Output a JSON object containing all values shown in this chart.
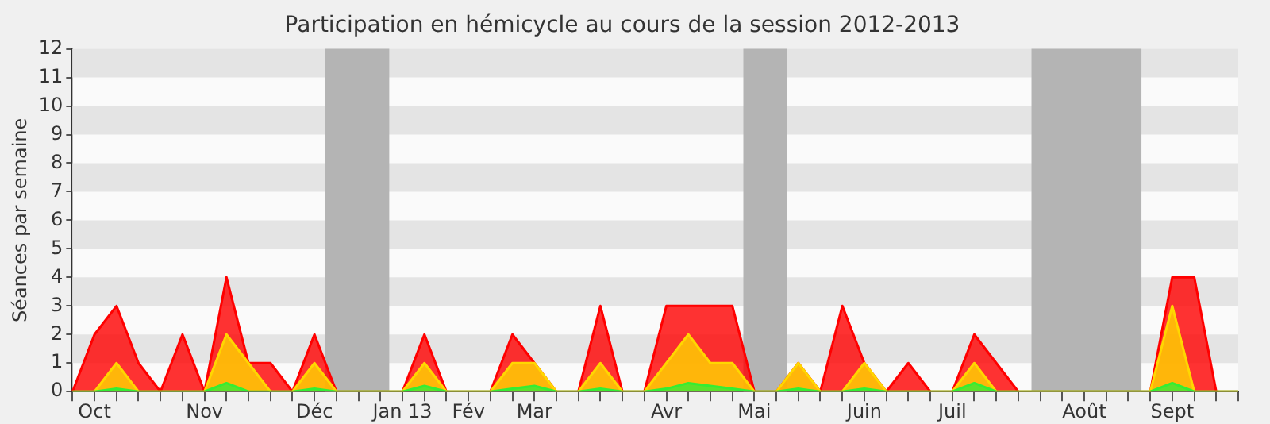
{
  "chart_data": {
    "type": "area",
    "title": "Participation en hémicycle au cours de la session 2012-2013",
    "ylabel": "Séances par semaine",
    "categories": [
      null,
      "Oct",
      null,
      null,
      null,
      null,
      "Nov",
      null,
      null,
      null,
      null,
      "Déc",
      null,
      null,
      null,
      "Jan 13",
      null,
      null,
      "Fév",
      null,
      null,
      "Mar",
      null,
      null,
      null,
      null,
      null,
      "Avr",
      null,
      null,
      null,
      "Mai",
      null,
      null,
      null,
      null,
      "Juin",
      null,
      null,
      null,
      "Juil",
      null,
      null,
      null,
      null,
      null,
      "Août",
      null,
      null,
      null,
      "Sept",
      null,
      null,
      null
    ],
    "series": [
      {
        "color": "#ff0000",
        "values": [
          0,
          2,
          3,
          1,
          0,
          2,
          0,
          4,
          1,
          1,
          0,
          2,
          0,
          0,
          0,
          0,
          2,
          0,
          0,
          0,
          2,
          1,
          0,
          0,
          3,
          0,
          0,
          3,
          3,
          3,
          3,
          0,
          0,
          1,
          0,
          3,
          1,
          0,
          1,
          0,
          0,
          2,
          1,
          0,
          0,
          0,
          0,
          0,
          0,
          0,
          4,
          4,
          0,
          0
        ]
      },
      {
        "color": "#ffd700",
        "values": [
          0,
          0,
          1,
          0,
          0,
          0,
          0,
          2,
          1,
          0,
          0,
          1,
          0,
          0,
          0,
          0,
          1,
          0,
          0,
          0,
          1,
          1,
          0,
          0,
          1,
          0,
          0,
          1,
          2,
          1,
          1,
          0,
          0,
          1,
          0,
          0,
          1,
          0,
          0,
          0,
          0,
          1,
          0,
          0,
          0,
          0,
          0,
          0,
          0,
          0,
          3,
          0,
          0,
          0
        ]
      },
      {
        "color": "#33ee33",
        "values": [
          0,
          0,
          0.1,
          0,
          0,
          0,
          0,
          0.3,
          0,
          0,
          0,
          0.1,
          0,
          0,
          0,
          0,
          0.2,
          0,
          0,
          0,
          0.1,
          0.2,
          0,
          0,
          0.1,
          0,
          0,
          0.1,
          0.3,
          0.2,
          0.1,
          0,
          0,
          0.1,
          0,
          0,
          0.1,
          0,
          0,
          0,
          0,
          0.3,
          0,
          0,
          0,
          0,
          0,
          0,
          0,
          0,
          0.3,
          0,
          0,
          0
        ]
      }
    ],
    "ylim": [
      0,
      12
    ],
    "yticks": [
      0,
      1,
      2,
      3,
      4,
      5,
      6,
      7,
      8,
      9,
      10,
      11,
      12
    ],
    "legend": false,
    "marker": "none",
    "line_style": "solid"
  }
}
